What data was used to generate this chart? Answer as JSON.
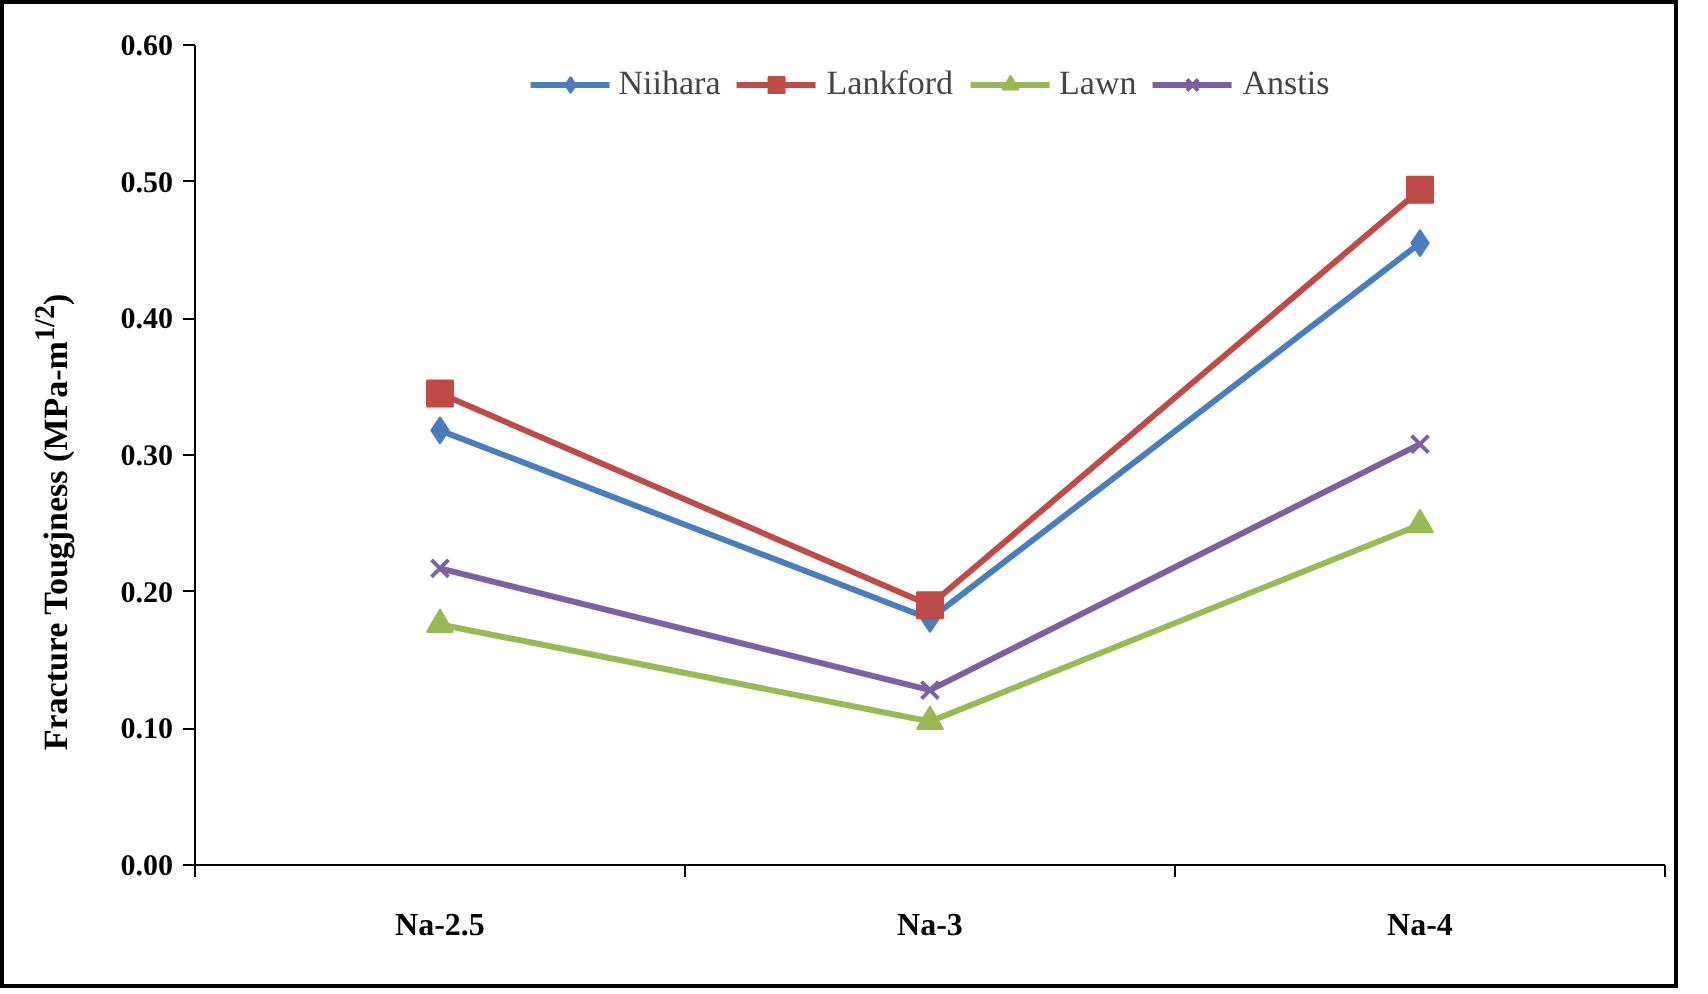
{
  "chart_data": {
    "type": "line",
    "ylabel": "Fracture Tougjness (MPa-m$^{1/2}$)",
    "categories": [
      "Na-2.5",
      "Na-3",
      "Na-4"
    ],
    "series": [
      {
        "name": "Niihara",
        "color": "#4a7ebb",
        "marker": "diamond",
        "values": [
          0.318,
          0.18,
          0.455
        ]
      },
      {
        "name": "Lankford",
        "color": "#be4b48",
        "marker": "square",
        "values": [
          0.345,
          0.19,
          0.494
        ]
      },
      {
        "name": "Lawn",
        "color": "#98b954",
        "marker": "triangle",
        "values": [
          0.176,
          0.105,
          0.249
        ]
      },
      {
        "name": "Anstis",
        "color": "#7d60a0",
        "marker": "cross",
        "values": [
          0.217,
          0.128,
          0.308
        ]
      }
    ],
    "ylim": [
      0,
      0.6
    ],
    "yticks": [
      {
        "value": 0,
        "label": "0.00"
      },
      {
        "value": 0.1,
        "label": "0.10"
      },
      {
        "value": 0.2,
        "label": "0.20"
      },
      {
        "value": 0.3,
        "label": "0.30"
      },
      {
        "value": 0.4,
        "label": "0.40"
      },
      {
        "value": 0.5,
        "label": "0.50"
      },
      {
        "value": 0.6,
        "label": "0.60"
      }
    ],
    "grid": false,
    "legend": "top",
    "line_style": "solid"
  }
}
